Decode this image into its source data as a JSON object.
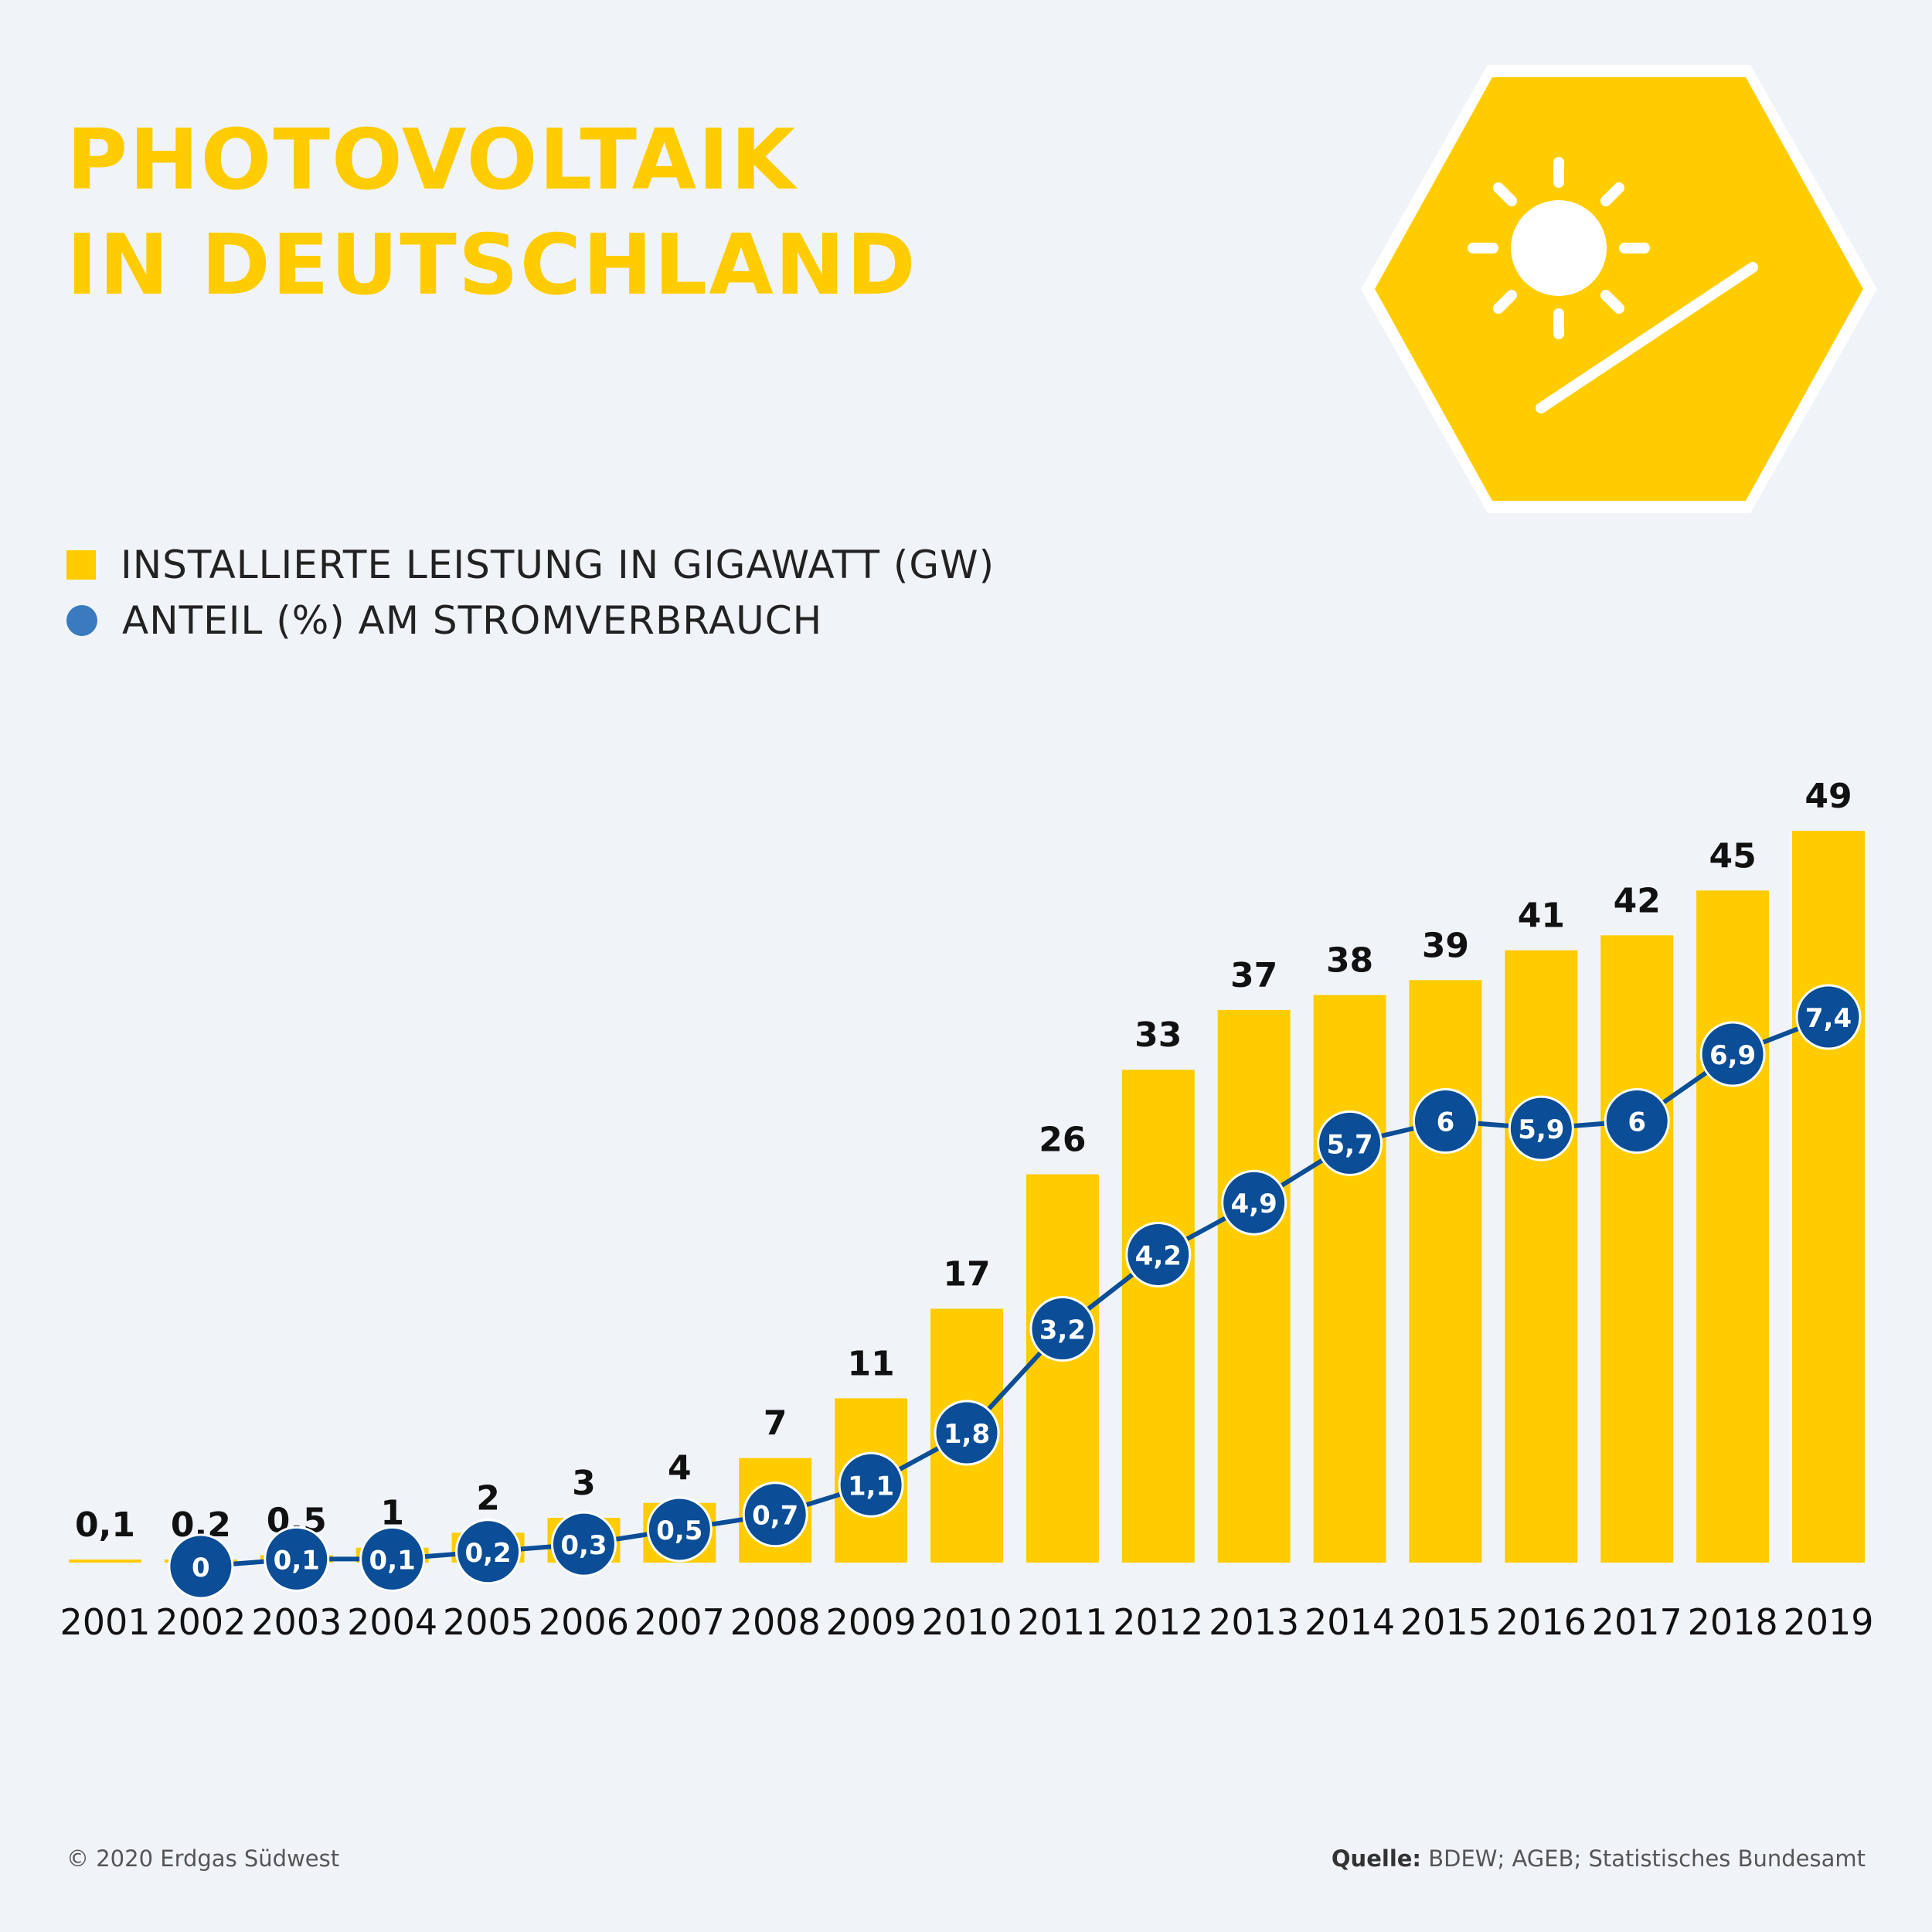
{
  "header": {
    "title_line1": "PHOTOVOLTAIK",
    "title_line2": "IN DEUTSCHLAND"
  },
  "badge": {
    "icon": "sun-solar-panel-icon"
  },
  "legend": {
    "bars_label": "INSTALLIERTE LEISTUNG IN GIGAWATT (GW)",
    "line_label": "ANTEIL (%) AM STROMVERBRAUCH"
  },
  "chart_data": {
    "type": "bar",
    "categories": [
      "2001",
      "2002",
      "2003",
      "2004",
      "2005",
      "2006",
      "2007",
      "2008",
      "2009",
      "2010",
      "2011",
      "2012",
      "2013",
      "2014",
      "2015",
      "2016",
      "2017",
      "2018",
      "2019"
    ],
    "series": [
      {
        "name": "INSTALLIERTE LEISTUNG IN GIGAWATT (GW)",
        "type": "bar",
        "values": [
          0.1,
          0.2,
          0.5,
          1,
          2,
          3,
          4,
          7,
          11,
          17,
          26,
          33,
          37,
          38,
          39,
          41,
          42,
          45,
          49
        ],
        "labels": [
          "0,1",
          "0,2",
          "0,5",
          "1",
          "2",
          "3",
          "4",
          "7",
          "11",
          "17",
          "26",
          "33",
          "37",
          "38",
          "39",
          "41",
          "42",
          "45",
          "49"
        ],
        "color": "#ffcc00"
      },
      {
        "name": "ANTEIL (%) AM STROMVERBRAUCH",
        "type": "line",
        "x": [
          "2002",
          "2003",
          "2004",
          "2005",
          "2006",
          "2007",
          "2008",
          "2009",
          "2010",
          "2011",
          "2012",
          "2013",
          "2014",
          "2015",
          "2016",
          "2017",
          "2018",
          "2019"
        ],
        "values": [
          0,
          0.1,
          0.1,
          0.2,
          0.3,
          0.5,
          0.7,
          1.1,
          1.8,
          3.2,
          4.2,
          4.9,
          5.7,
          6,
          5.9,
          6,
          6.9,
          7.4
        ],
        "labels": [
          "0",
          "0,1",
          "0,1",
          "0,2",
          "0,3",
          "0,5",
          "0,7",
          "1,1",
          "1,8",
          "3,2",
          "4,2",
          "4,9",
          "5,7",
          "6",
          "5,9",
          "6",
          "6,9",
          "7,4"
        ],
        "color": "#0b4d96"
      }
    ],
    "bar_ylim": [
      0,
      49
    ],
    "line_ylim": [
      0,
      7.4
    ],
    "grid": false,
    "legend_position": "top-left"
  },
  "footer": {
    "copyright": "© 2020 Erdgas Südwest",
    "source_label": "Quelle:",
    "source_text": " BDEW; AGEB; Statistisches Bundesamt"
  }
}
